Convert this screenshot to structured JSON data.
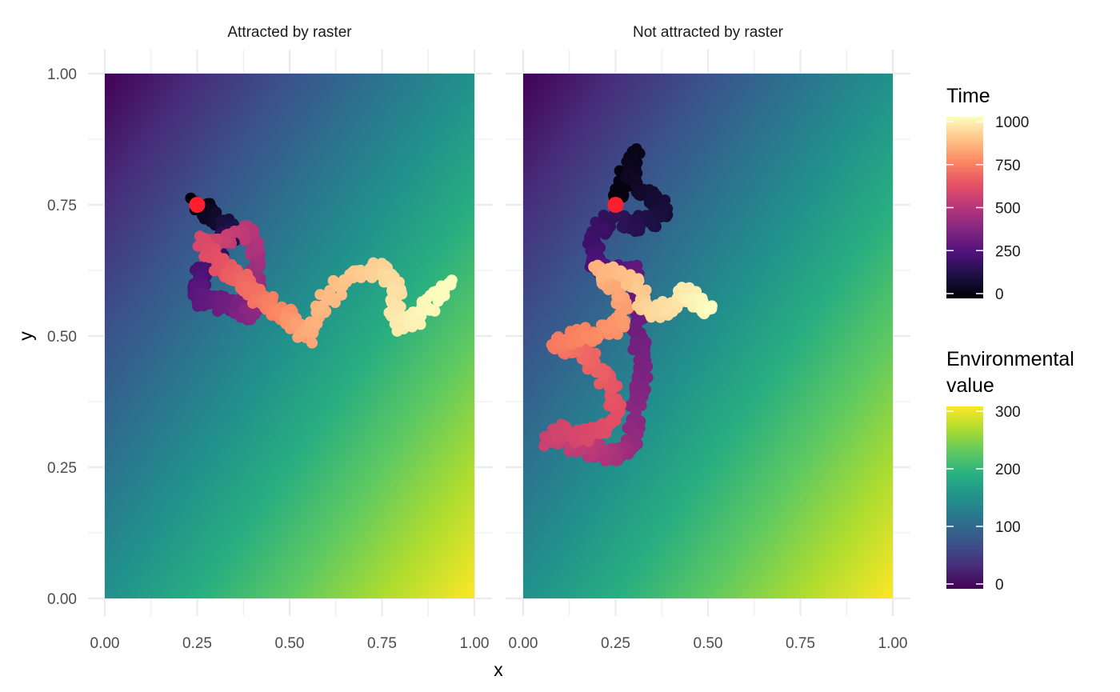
{
  "chart_data": {
    "type": "scatter",
    "xlabel": "x",
    "ylabel": "y",
    "xlim": [
      0,
      1
    ],
    "ylim": [
      0,
      1
    ],
    "x_ticks": [
      "0.00",
      "0.25",
      "0.50",
      "0.75",
      "1.00"
    ],
    "y_ticks": [
      "0.00",
      "0.25",
      "0.50",
      "0.75",
      "1.00"
    ],
    "grid": true,
    "background_raster": {
      "description_value": "Environmental value gradient increasing toward bottom-right",
      "min": 0,
      "max": 300
    },
    "panels": [
      {
        "title": "Attracted by raster",
        "start_point": {
          "x": 0.25,
          "y": 0.75,
          "color": "#ff1e2d"
        },
        "path": [
          [
            0.25,
            0.75,
            0
          ],
          [
            0.27,
            0.74,
            40
          ],
          [
            0.3,
            0.72,
            80
          ],
          [
            0.33,
            0.71,
            110
          ],
          [
            0.34,
            0.69,
            140
          ],
          [
            0.31,
            0.67,
            170
          ],
          [
            0.28,
            0.65,
            200
          ],
          [
            0.26,
            0.62,
            230
          ],
          [
            0.25,
            0.59,
            260
          ],
          [
            0.27,
            0.57,
            290
          ],
          [
            0.31,
            0.56,
            320
          ],
          [
            0.36,
            0.56,
            350
          ],
          [
            0.39,
            0.54,
            380
          ],
          [
            0.4,
            0.57,
            410
          ],
          [
            0.41,
            0.62,
            440
          ],
          [
            0.41,
            0.67,
            470
          ],
          [
            0.39,
            0.7,
            500
          ],
          [
            0.35,
            0.69,
            530
          ],
          [
            0.3,
            0.68,
            560
          ],
          [
            0.26,
            0.68,
            590
          ],
          [
            0.3,
            0.64,
            620
          ],
          [
            0.34,
            0.62,
            650
          ],
          [
            0.38,
            0.6,
            680
          ],
          [
            0.42,
            0.57,
            710
          ],
          [
            0.46,
            0.55,
            740
          ],
          [
            0.5,
            0.54,
            770
          ],
          [
            0.52,
            0.51,
            800
          ],
          [
            0.55,
            0.5,
            820
          ],
          [
            0.58,
            0.54,
            840
          ],
          [
            0.61,
            0.58,
            860
          ],
          [
            0.66,
            0.61,
            880
          ],
          [
            0.72,
            0.63,
            900
          ],
          [
            0.76,
            0.62,
            915
          ],
          [
            0.79,
            0.6,
            930
          ],
          [
            0.78,
            0.56,
            945
          ],
          [
            0.8,
            0.52,
            960
          ],
          [
            0.84,
            0.53,
            975
          ],
          [
            0.88,
            0.56,
            990
          ],
          [
            0.93,
            0.6,
            1000
          ]
        ]
      },
      {
        "title": "Not attracted by raster",
        "start_point": {
          "x": 0.25,
          "y": 0.75,
          "color": "#ff1e2d"
        },
        "path": [
          [
            0.25,
            0.75,
            0
          ],
          [
            0.27,
            0.79,
            20
          ],
          [
            0.3,
            0.85,
            40
          ],
          [
            0.29,
            0.8,
            60
          ],
          [
            0.33,
            0.77,
            80
          ],
          [
            0.38,
            0.74,
            100
          ],
          [
            0.35,
            0.72,
            120
          ],
          [
            0.29,
            0.71,
            150
          ],
          [
            0.23,
            0.72,
            180
          ],
          [
            0.19,
            0.68,
            210
          ],
          [
            0.2,
            0.63,
            240
          ],
          [
            0.26,
            0.62,
            270
          ],
          [
            0.3,
            0.62,
            290
          ],
          [
            0.32,
            0.56,
            310
          ],
          [
            0.31,
            0.5,
            330
          ],
          [
            0.32,
            0.46,
            350
          ],
          [
            0.32,
            0.4,
            370
          ],
          [
            0.3,
            0.35,
            390
          ],
          [
            0.3,
            0.3,
            410
          ],
          [
            0.27,
            0.28,
            440
          ],
          [
            0.24,
            0.27,
            470
          ],
          [
            0.2,
            0.28,
            500
          ],
          [
            0.16,
            0.29,
            520
          ],
          [
            0.11,
            0.3,
            540
          ],
          [
            0.07,
            0.3,
            555
          ],
          [
            0.1,
            0.32,
            570
          ],
          [
            0.16,
            0.31,
            585
          ],
          [
            0.22,
            0.32,
            600
          ],
          [
            0.25,
            0.36,
            620
          ],
          [
            0.23,
            0.41,
            640
          ],
          [
            0.2,
            0.44,
            660
          ],
          [
            0.16,
            0.47,
            680
          ],
          [
            0.11,
            0.48,
            700
          ],
          [
            0.09,
            0.49,
            720
          ],
          [
            0.15,
            0.5,
            740
          ],
          [
            0.21,
            0.51,
            760
          ],
          [
            0.26,
            0.52,
            780
          ],
          [
            0.27,
            0.56,
            800
          ],
          [
            0.24,
            0.6,
            820
          ],
          [
            0.2,
            0.63,
            840
          ],
          [
            0.26,
            0.62,
            860
          ],
          [
            0.31,
            0.6,
            880
          ],
          [
            0.33,
            0.56,
            900
          ],
          [
            0.36,
            0.54,
            920
          ],
          [
            0.4,
            0.56,
            940
          ],
          [
            0.44,
            0.58,
            960
          ],
          [
            0.47,
            0.56,
            980
          ],
          [
            0.5,
            0.55,
            1000
          ]
        ]
      }
    ],
    "legends": [
      {
        "title": "Time",
        "palette": "magma",
        "range": [
          0,
          1000
        ],
        "labels": [
          "0",
          "250",
          "500",
          "750",
          "1000"
        ],
        "values": [
          0,
          250,
          500,
          750,
          1000
        ]
      },
      {
        "title": [
          "Environmental",
          "value"
        ],
        "palette": "viridis",
        "range": [
          0,
          300
        ],
        "labels": [
          "0",
          "100",
          "200",
          "300"
        ],
        "values": [
          0,
          100,
          200,
          300
        ]
      }
    ]
  }
}
